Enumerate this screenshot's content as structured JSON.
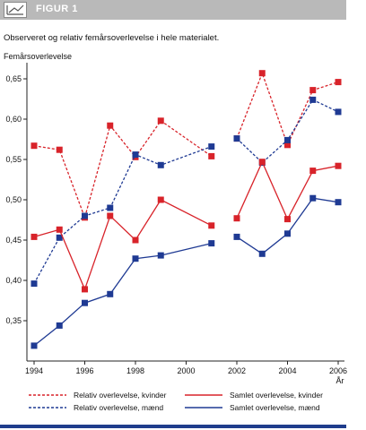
{
  "header": {
    "label": "FIGUR 1"
  },
  "subtitle": "Observeret og relativ femårsoverlevelse i hele materialet.",
  "colors": {
    "kvinder": "#d8232a",
    "maend": "#1f3a93"
  },
  "chart_data": {
    "type": "line",
    "ylabel": "Femårsoverlevelse",
    "xlabel": "År",
    "xlim": [
      1994,
      2006
    ],
    "ylim": [
      0.3,
      0.67
    ],
    "x_ticks": [
      1994,
      1996,
      1998,
      2000,
      2002,
      2004,
      2006
    ],
    "x_tick_labels": [
      "1994",
      "1996",
      "1998",
      "2000",
      "2002",
      "2004",
      "2006"
    ],
    "y_ticks": [
      0.35,
      0.4,
      0.45,
      0.5,
      0.55,
      0.6,
      0.65
    ],
    "y_tick_labels": [
      "0,35",
      "0,40",
      "0,45",
      "0,50",
      "0,55",
      "0,60",
      "0,65"
    ],
    "legend_position": "bottom",
    "series": [
      {
        "name": "Relativ overlevelse, kvinder",
        "style": "dashed",
        "color": "#d8232a",
        "segments": [
          {
            "x": [
              1994,
              1995,
              1996,
              1997,
              1998,
              1999,
              2001
            ],
            "y": [
              0.567,
              0.562,
              0.478,
              0.592,
              0.553,
              0.598,
              0.554
            ]
          },
          {
            "x": [
              2002,
              2003,
              2004,
              2005,
              2006
            ],
            "y": [
              0.576,
              0.657,
              0.568,
              0.636,
              0.646
            ]
          }
        ]
      },
      {
        "name": "Relativ overlevelse, mænd",
        "style": "dashed",
        "color": "#1f3a93",
        "segments": [
          {
            "x": [
              1994,
              1995,
              1996,
              1997,
              1998,
              1999,
              2001
            ],
            "y": [
              0.396,
              0.453,
              0.48,
              0.49,
              0.556,
              0.543,
              0.566
            ]
          },
          {
            "x": [
              2002,
              2003,
              2004,
              2005,
              2006
            ],
            "y": [
              0.576,
              0.546,
              0.574,
              0.624,
              0.609
            ]
          }
        ]
      },
      {
        "name": "Samlet overlevelse, kvinder",
        "style": "solid",
        "color": "#d8232a",
        "segments": [
          {
            "x": [
              1994,
              1995,
              1996,
              1997,
              1998,
              1999,
              2001
            ],
            "y": [
              0.454,
              0.463,
              0.389,
              0.48,
              0.45,
              0.5,
              0.468
            ]
          },
          {
            "x": [
              2002,
              2003,
              2004,
              2005,
              2006
            ],
            "y": [
              0.477,
              0.547,
              0.476,
              0.536,
              0.542
            ]
          }
        ]
      },
      {
        "name": "Samlet overlevelse, mænd",
        "style": "solid",
        "color": "#1f3a93",
        "segments": [
          {
            "x": [
              1994,
              1995,
              1996,
              1997,
              1998,
              1999,
              2001
            ],
            "y": [
              0.319,
              0.344,
              0.372,
              0.383,
              0.427,
              0.431,
              0.446
            ]
          },
          {
            "x": [
              2002,
              2003,
              2004,
              2005,
              2006
            ],
            "y": [
              0.454,
              0.433,
              0.458,
              0.502,
              0.497
            ]
          }
        ]
      }
    ]
  }
}
